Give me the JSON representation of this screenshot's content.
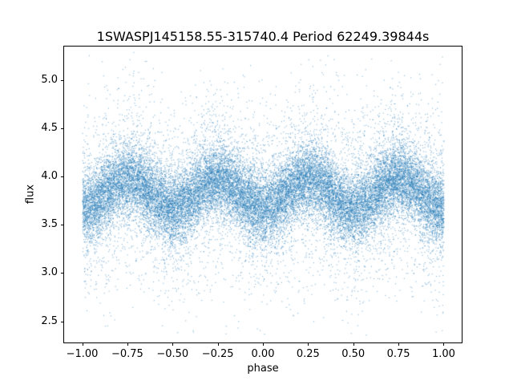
{
  "title": "1SWASPJ145158.55-315740.4 Period 62249.39844s",
  "chart_data": {
    "type": "scatter",
    "title": "1SWASPJ145158.55-315740.4 Period 62249.39844s",
    "xlabel": "phase",
    "ylabel": "flux",
    "xlim": [
      -1.1,
      1.1
    ],
    "ylim": [
      2.28,
      5.35
    ],
    "xtick_values": [
      -1.0,
      -0.75,
      -0.5,
      -0.25,
      0.0,
      0.25,
      0.5,
      0.75,
      1.0
    ],
    "xtick_labels": [
      "−1.00",
      "−0.75",
      "−0.50",
      "−0.25",
      "0.00",
      "0.25",
      "0.50",
      "0.75",
      "1.00"
    ],
    "ytick_values": [
      2.5,
      3.0,
      3.5,
      4.0,
      4.5,
      5.0
    ],
    "ytick_labels": [
      "2.5",
      "3.0",
      "3.5",
      "4.0",
      "4.5",
      "5.0"
    ],
    "marker_color": "#1f77b4",
    "marker_size_px": 1,
    "grid": false,
    "legend": "none",
    "n_points": 30000,
    "model": {
      "description": "Phase-folded stellar light curve plotted over two cycles (phase -1 to 1). Dense scatter band whose mean flux varies as a double-dip modulation: mean = base_flux - modulation_amplitude * cos(4*pi*phase), giving minima (flux ~3.68) at phase 0, ±0.5, ±1 and maxima (flux ~3.98) at phase ±0.25, ±0.75. Gaussian scatter around the mean with a narrow core and a broad sparse tail; rare outliers span flux ~2.35 to ~5.3 across all phases.",
      "base_flux": 3.83,
      "modulation_amplitude": 0.15,
      "dips_at_phase": [
        -1.0,
        -0.5,
        0.0,
        0.5,
        1.0
      ],
      "peaks_at_phase": [
        -0.75,
        -0.25,
        0.25,
        0.75
      ],
      "core_sigma": 0.18,
      "tail_sigma": 0.5,
      "tail_fraction": 0.22,
      "flux_range_observed": [
        2.35,
        5.3
      ],
      "phase_range": [
        -1.0,
        1.0
      ],
      "seed": 42
    }
  }
}
